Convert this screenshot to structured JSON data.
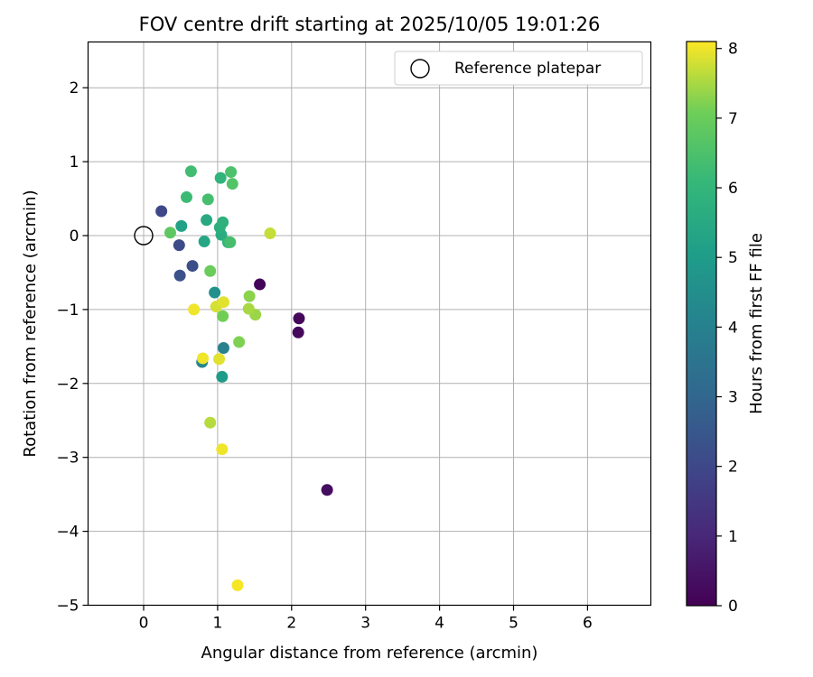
{
  "chart_data": {
    "type": "scatter",
    "title": "FOV centre drift starting at 2025/10/05 19:01:26",
    "xlabel": "Angular distance from reference (arcmin)",
    "ylabel": "Rotation from reference (arcmin)",
    "xlim": [
      -0.8,
      6.85
    ],
    "ylim": [
      -5,
      2.65
    ],
    "xticks": [
      0,
      1,
      2,
      3,
      4,
      5,
      6
    ],
    "yticks": [
      -5,
      -4,
      -3,
      -2,
      -1,
      0,
      1,
      2
    ],
    "xtick_labels": [
      "0",
      "1",
      "2",
      "3",
      "4",
      "5",
      "6"
    ],
    "ytick_labels": [
      "−5",
      "−4",
      "−3",
      "−2",
      "−1",
      "0",
      "1",
      "2"
    ],
    "grid": true,
    "legend": {
      "position": "top-right",
      "entries": [
        "Reference platepar"
      ]
    },
    "reference": {
      "x": 0,
      "y": 0
    },
    "colorbar": {
      "label": "Hours from first FF file",
      "min": 0,
      "max": 8.1,
      "ticks": [
        0,
        1,
        2,
        3,
        4,
        5,
        6,
        7,
        8
      ],
      "tick_labels": [
        "0",
        "1",
        "2",
        "3",
        "4",
        "5",
        "6",
        "7",
        "8"
      ],
      "colormap": "viridis"
    },
    "points": [
      {
        "x": 1.57,
        "y": -0.66,
        "hours": 0.1
      },
      {
        "x": 2.1,
        "y": -1.12,
        "hours": 0.15
      },
      {
        "x": 2.09,
        "y": -1.31,
        "hours": 0.2
      },
      {
        "x": 2.48,
        "y": -3.44,
        "hours": 0.3
      },
      {
        "x": 0.24,
        "y": 0.33,
        "hours": 2.0
      },
      {
        "x": 0.48,
        "y": -0.13,
        "hours": 2.1
      },
      {
        "x": 0.66,
        "y": -0.41,
        "hours": 2.2
      },
      {
        "x": 0.49,
        "y": -0.54,
        "hours": 2.3
      },
      {
        "x": 1.08,
        "y": -1.52,
        "hours": 4.0
      },
      {
        "x": 0.79,
        "y": -1.71,
        "hours": 4.2
      },
      {
        "x": 0.96,
        "y": -0.77,
        "hours": 4.6
      },
      {
        "x": 1.06,
        "y": -1.91,
        "hours": 5.0
      },
      {
        "x": 0.51,
        "y": 0.13,
        "hours": 5.2
      },
      {
        "x": 0.82,
        "y": -0.08,
        "hours": 5.4
      },
      {
        "x": 0.85,
        "y": 0.21,
        "hours": 5.5
      },
      {
        "x": 1.05,
        "y": 0.01,
        "hours": 5.6
      },
      {
        "x": 1.03,
        "y": 0.11,
        "hours": 5.7
      },
      {
        "x": 1.07,
        "y": 0.18,
        "hours": 5.8
      },
      {
        "x": 1.14,
        "y": -0.09,
        "hours": 5.9
      },
      {
        "x": 1.04,
        "y": 0.78,
        "hours": 5.9
      },
      {
        "x": 0.58,
        "y": 0.52,
        "hours": 6.2
      },
      {
        "x": 0.64,
        "y": 0.87,
        "hours": 6.3
      },
      {
        "x": 0.87,
        "y": 0.49,
        "hours": 6.4
      },
      {
        "x": 1.17,
        "y": -0.09,
        "hours": 6.4
      },
      {
        "x": 1.18,
        "y": 0.86,
        "hours": 6.5
      },
      {
        "x": 1.2,
        "y": 0.7,
        "hours": 6.6
      },
      {
        "x": 0.36,
        "y": 0.04,
        "hours": 6.8
      },
      {
        "x": 0.9,
        "y": -0.48,
        "hours": 7.0
      },
      {
        "x": 1.07,
        "y": -1.09,
        "hours": 7.1
      },
      {
        "x": 1.29,
        "y": -1.44,
        "hours": 7.2
      },
      {
        "x": 1.43,
        "y": -0.82,
        "hours": 7.3
      },
      {
        "x": 1.51,
        "y": -1.07,
        "hours": 7.4
      },
      {
        "x": 1.42,
        "y": -0.99,
        "hours": 7.5
      },
      {
        "x": 0.9,
        "y": -2.53,
        "hours": 7.6
      },
      {
        "x": 1.71,
        "y": 0.03,
        "hours": 7.7
      },
      {
        "x": 0.98,
        "y": -0.96,
        "hours": 7.8
      },
      {
        "x": 1.08,
        "y": -0.9,
        "hours": 7.9
      },
      {
        "x": 1.02,
        "y": -1.67,
        "hours": 7.9
      },
      {
        "x": 0.8,
        "y": -1.66,
        "hours": 8.0
      },
      {
        "x": 0.68,
        "y": -1.0,
        "hours": 8.0
      },
      {
        "x": 1.06,
        "y": -2.89,
        "hours": 8.0
      },
      {
        "x": 1.27,
        "y": -4.73,
        "hours": 8.05
      }
    ]
  }
}
